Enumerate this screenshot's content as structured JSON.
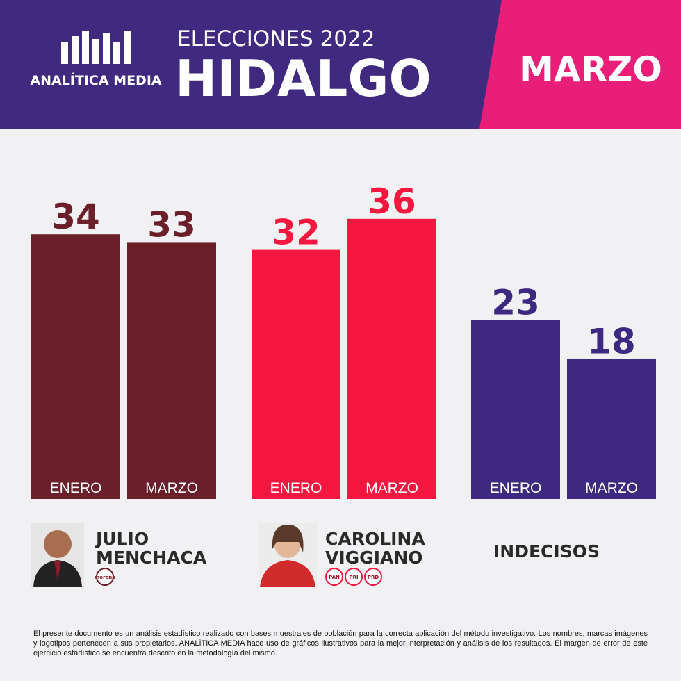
{
  "header": {
    "brand": "ANALÍTICA MEDIA",
    "kicker": "ELECCIONES 2022",
    "title": "HIDALGO",
    "month": "MARZO"
  },
  "chart_data": {
    "type": "bar",
    "categories": [
      "JULIO MENCHACA",
      "CAROLINA VIGGIANO",
      "INDECISOS"
    ],
    "category_colors": [
      "#6b1f2b",
      "#f5173f",
      "#3d2a80"
    ],
    "category_parties": [
      [
        "morena"
      ],
      [
        "PAN",
        "PRI",
        "PRD"
      ],
      []
    ],
    "series": [
      {
        "name": "ENERO",
        "values": [
          34,
          32,
          23
        ]
      },
      {
        "name": "MARZO",
        "values": [
          33,
          36,
          18
        ]
      }
    ],
    "ylim": [
      0,
      40
    ]
  },
  "footer": "El presente documento es un análisis estadístico realizado con bases muestrales de población para la correcta aplicación del método investigativo. Los nombres, marcas imágenes y logotipos pertenecen a sus propietarios. ANALÍTICA MEDIA hace uso de gráficos ilustrativos para la mejor interpretación y análisis de los resultados. El margen de error de este ejercicio estadístico se encuentra descrito en la metodología del mismo."
}
